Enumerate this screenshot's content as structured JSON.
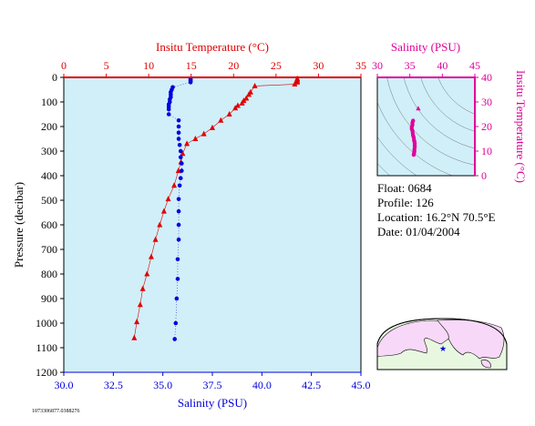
{
  "chart_data": [
    {
      "type": "scatter",
      "title": "",
      "xlabel_top": "Insitu Temperature (°C)",
      "xlabel_bottom": "Salinity (PSU)",
      "ylabel": "Pressure (decibar)",
      "top_xlim": [
        0,
        35
      ],
      "bottom_xlim": [
        30.0,
        45.0
      ],
      "ylim": [
        1200,
        0
      ],
      "top_ticks": [
        "0",
        "5",
        "10",
        "15",
        "20",
        "25",
        "30",
        "35"
      ],
      "bottom_ticks": [
        "30.0",
        "32.5",
        "35.0",
        "37.5",
        "40.0",
        "42.5",
        "45.0"
      ],
      "y_ticks": [
        "0",
        "100",
        "200",
        "300",
        "400",
        "500",
        "600",
        "700",
        "800",
        "900",
        "1000",
        "1100",
        "1200"
      ],
      "series": [
        {
          "name": "Insitu Temperature",
          "color": "#e00000",
          "marker": "triangle",
          "points": [
            [
              27.5,
              5
            ],
            [
              27.5,
              10
            ],
            [
              27.5,
              15
            ],
            [
              27.5,
              20
            ],
            [
              27.2,
              28
            ],
            [
              22.5,
              35
            ],
            [
              22.0,
              60
            ],
            [
              21.8,
              70
            ],
            [
              21.5,
              85
            ],
            [
              21.2,
              95
            ],
            [
              21.0,
              105
            ],
            [
              20.5,
              115
            ],
            [
              20.2,
              125
            ],
            [
              19.5,
              150
            ],
            [
              18.5,
              175
            ],
            [
              17.5,
              205
            ],
            [
              16.5,
              230
            ],
            [
              15.5,
              250
            ],
            [
              14.5,
              270
            ],
            [
              14.0,
              310
            ],
            [
              13.8,
              345
            ],
            [
              13.5,
              380
            ],
            [
              13.0,
              440
            ],
            [
              12.3,
              495
            ],
            [
              11.8,
              545
            ],
            [
              11.3,
              600
            ],
            [
              10.8,
              660
            ],
            [
              10.3,
              730
            ],
            [
              9.8,
              800
            ],
            [
              9.3,
              860
            ],
            [
              9.0,
              925
            ],
            [
              8.6,
              995
            ],
            [
              8.3,
              1060
            ]
          ]
        },
        {
          "name": "Salinity",
          "color": "#0000dd",
          "marker": "circle",
          "points": [
            [
              36.4,
              5
            ],
            [
              36.4,
              10
            ],
            [
              36.4,
              15
            ],
            [
              36.4,
              20
            ],
            [
              35.5,
              40
            ],
            [
              35.45,
              50
            ],
            [
              35.4,
              60
            ],
            [
              35.4,
              70
            ],
            [
              35.4,
              80
            ],
            [
              35.35,
              90
            ],
            [
              35.35,
              100
            ],
            [
              35.3,
              110
            ],
            [
              35.3,
              120
            ],
            [
              35.3,
              130
            ],
            [
              35.3,
              150
            ],
            [
              35.8,
              175
            ],
            [
              35.8,
              200
            ],
            [
              35.8,
              225
            ],
            [
              35.8,
              250
            ],
            [
              35.85,
              275
            ],
            [
              35.9,
              300
            ],
            [
              35.9,
              325
            ],
            [
              35.95,
              350
            ],
            [
              35.95,
              380
            ],
            [
              35.9,
              410
            ],
            [
              35.85,
              440
            ],
            [
              35.8,
              495
            ],
            [
              35.8,
              545
            ],
            [
              35.8,
              600
            ],
            [
              35.8,
              660
            ],
            [
              35.75,
              740
            ],
            [
              35.75,
              820
            ],
            [
              35.7,
              900
            ],
            [
              35.65,
              1000
            ],
            [
              35.6,
              1065
            ]
          ]
        }
      ]
    },
    {
      "type": "scatter",
      "xlabel": "Salinity (PSU)",
      "ylabel": "Insitu Temperature (°C)",
      "xlim": [
        30,
        45
      ],
      "ylim": [
        0,
        40
      ],
      "x_ticks": [
        "30",
        "35",
        "40",
        "45"
      ],
      "y_ticks": [
        "0",
        "10",
        "20",
        "30",
        "40"
      ],
      "color": "#e0009a",
      "points": [
        [
          36.3,
          27.3
        ],
        [
          35.5,
          22.4
        ],
        [
          35.4,
          21.5
        ],
        [
          35.4,
          20.6
        ],
        [
          35.3,
          19.8
        ],
        [
          35.3,
          19.0
        ],
        [
          35.4,
          18.3
        ],
        [
          35.45,
          17.3
        ],
        [
          35.5,
          16.3
        ],
        [
          35.6,
          15.5
        ],
        [
          35.65,
          14.5
        ],
        [
          35.7,
          13.9
        ],
        [
          35.75,
          13.2
        ],
        [
          35.75,
          12.3
        ],
        [
          35.75,
          11.5
        ],
        [
          35.7,
          10.6
        ],
        [
          35.7,
          9.8
        ],
        [
          35.65,
          9.1
        ],
        [
          35.6,
          8.5
        ]
      ]
    }
  ],
  "info": {
    "float": "Float:  0684",
    "profile": "Profile:  126",
    "location": "Location:  16.2°N  70.5°E",
    "date": "Date:  01/04/2004"
  },
  "footer_code": "1073306877.0388276",
  "colors": {
    "temperature": "#e00000",
    "salinity": "#0000dd",
    "ts": "#e0009a",
    "plot_bg": "#d0eff9",
    "map_land": "#f8d8f8",
    "map_ocean": "#e8f8e0"
  }
}
